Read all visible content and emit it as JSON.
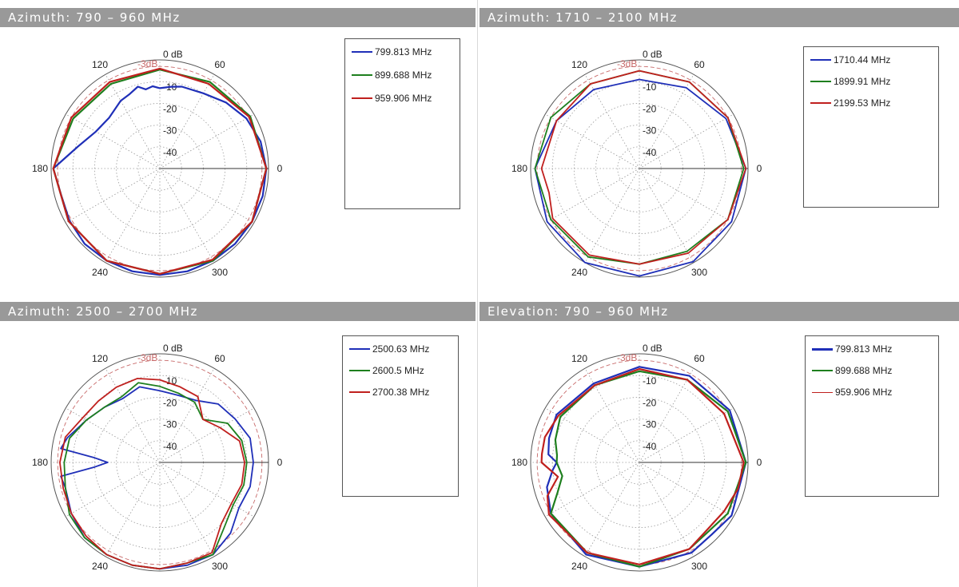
{
  "colors": {
    "title_bar": "#999999",
    "blue": "#1f2fb8",
    "green": "#1e7f1e",
    "red": "#c0201e",
    "grid": "#9a9a9a",
    "ref_3db": "#c86a6a"
  },
  "common": {
    "ring_labels": [
      "0 dB",
      "-10",
      "-20",
      "-30",
      "-40"
    ],
    "ref_label": "-3dB",
    "angle_labels": {
      "a0": "0",
      "a60": "60",
      "a120": "120",
      "a180": "180",
      "a240": "240",
      "a300": "300"
    }
  },
  "panels": [
    {
      "title": "Azimuth: 790 – 960 MHz",
      "chart_data": {
        "type": "polar-line",
        "r_axis": {
          "min": -50,
          "max": 0,
          "ticks": [
            0,
            -10,
            -20,
            -30,
            -40
          ],
          "ref": -3
        },
        "theta_ticks": [
          0,
          60,
          120,
          180,
          240,
          300
        ],
        "series": [
          {
            "name": "799.813 MHz",
            "color": "blue",
            "width": 2.2,
            "theta": [
              0,
              15,
              30,
              45,
              60,
              75,
              82,
              90,
              95,
              100,
              105,
              112,
              120,
              135,
              150,
              165,
              180,
              195,
              210,
              225,
              240,
              255,
              270,
              285,
              300,
              315,
              330,
              345,
              360
            ],
            "r": [
              -1,
              -2,
              -4,
              -7,
              -10,
              -11,
              -12,
              -13,
              -12,
              -13,
              -11,
              -13,
              -14,
              -17,
              -16,
              -11,
              -1,
              -3,
              -2,
              -1,
              -1,
              -1,
              -1,
              -1,
              -1,
              -1,
              -1,
              -1,
              -1
            ]
          },
          {
            "name": "899.688 MHz",
            "color": "green",
            "width": 2.2,
            "theta": [
              0,
              30,
              60,
              90,
              120,
              150,
              180,
              210,
              240,
              270,
              300,
              330,
              360
            ],
            "r": [
              -1,
              -2,
              -4,
              -4.5,
              -5,
              -4,
              -1,
              -1.5,
              -1,
              -1.5,
              -1,
              -1,
              -1
            ]
          },
          {
            "name": "959.906 MHz",
            "color": "red",
            "width": 2.2,
            "theta": [
              0,
              30,
              60,
              90,
              120,
              150,
              180,
              210,
              240,
              270,
              300,
              330,
              360
            ],
            "r": [
              -1,
              -2.5,
              -5,
              -4,
              -4,
              -3,
              -1,
              -1.5,
              -1,
              -1.5,
              -1.5,
              -1,
              -1
            ]
          }
        ]
      }
    },
    {
      "title": "Azimuth: 1710 – 2100 MHz",
      "chart_data": {
        "type": "polar-line",
        "r_axis": {
          "min": -50,
          "max": 0,
          "ticks": [
            0,
            -10,
            -20,
            -30,
            -40
          ],
          "ref": -3
        },
        "theta_ticks": [
          0,
          60,
          120,
          180,
          240,
          300
        ],
        "series": [
          {
            "name": "1710.44 MHz",
            "color": "blue",
            "width": 1.8,
            "theta": [
              0,
              30,
              60,
              90,
              120,
              150,
              180,
              210,
              240,
              270,
              300,
              330,
              360
            ],
            "r": [
              -1,
              -4,
              -7,
              -9,
              -8,
              -6,
              -2,
              -1,
              0,
              -0.5,
              -0.5,
              -1,
              -1
            ]
          },
          {
            "name": "1899.91 MHz",
            "color": "green",
            "width": 1.8,
            "theta": [
              0,
              30,
              60,
              90,
              120,
              150,
              180,
              210,
              240,
              270,
              300,
              330,
              360
            ],
            "r": [
              -2,
              -3,
              -4,
              -5,
              -5,
              -3,
              -2,
              -3,
              -3,
              -6,
              -6,
              -3,
              -2
            ]
          },
          {
            "name": "2199.53 MHz",
            "color": "red",
            "width": 1.8,
            "theta": [
              0,
              30,
              60,
              90,
              120,
              150,
              180,
              195,
              210,
              240,
              270,
              300,
              330,
              360
            ],
            "r": [
              -1,
              -3,
              -4,
              -5,
              -5,
              -6,
              -5,
              -7,
              -4,
              -4,
              -6,
              -5,
              -3,
              -1
            ]
          }
        ]
      }
    },
    {
      "title": "Azimuth: 2500 – 2700 MHz",
      "chart_data": {
        "type": "polar-line",
        "r_axis": {
          "min": -50,
          "max": 0,
          "ticks": [
            0,
            -10,
            -20,
            -30,
            -40
          ],
          "ref": -3
        },
        "theta_ticks": [
          0,
          60,
          120,
          180,
          240,
          300
        ],
        "series": [
          {
            "name": "2500.63 MHz",
            "color": "blue",
            "width": 1.8,
            "theta": [
              0,
              15,
              30,
              45,
              60,
              75,
              90,
              105,
              120,
              135,
              150,
              165,
              172,
              176,
              180,
              184,
              188,
              195,
              210,
              225,
              240,
              255,
              270,
              285,
              300,
              315,
              330,
              345,
              360
            ],
            "r": [
              -7,
              -7,
              -10,
              -12,
              -17,
              -18,
              -17,
              -14,
              -16,
              -14,
              -11,
              -6,
              -4,
              -20,
              -26,
              -20,
              -4,
              -5,
              -3,
              -1,
              -1,
              -1,
              -1,
              -1,
              -1,
              -4,
              -8,
              -7,
              -7
            ]
          },
          {
            "name": "2600.5 MHz",
            "color": "green",
            "width": 1.8,
            "theta": [
              0,
              15,
              30,
              45,
              60,
              75,
              90,
              105,
              120,
              135,
              150,
              165,
              180,
              195,
              210,
              225,
              240,
              255,
              270,
              285,
              300,
              315,
              330,
              345,
              360
            ],
            "r": [
              -10,
              -11,
              -14,
              -22,
              -18,
              -17,
              -15,
              -12,
              -15,
              -14,
              -11,
              -7,
              -6,
              -5,
              -2,
              -1,
              -1,
              -1,
              -1,
              -2,
              -1,
              -8,
              -11,
              -10,
              -10
            ]
          },
          {
            "name": "2700.38 MHz",
            "color": "red",
            "width": 1.8,
            "theta": [
              0,
              15,
              30,
              45,
              60,
              75,
              90,
              105,
              120,
              135,
              150,
              165,
              180,
              195,
              210,
              225,
              240,
              255,
              270,
              285,
              300,
              315,
              330,
              345,
              360
            ],
            "r": [
              -11,
              -12,
              -18,
              -22,
              -15,
              -14,
              -12,
              -10,
              -10,
              -10,
              -9,
              -5,
              -4,
              -4,
              -3,
              -2,
              -1,
              -1,
              -1,
              -2,
              -2,
              -10,
              -12,
              -11,
              -11
            ]
          }
        ]
      }
    },
    {
      "title": "Elevation: 790 – 960 MHz",
      "chart_data": {
        "type": "polar-line",
        "r_axis": {
          "min": -50,
          "max": 0,
          "ticks": [
            0,
            -10,
            -20,
            -30,
            -40
          ],
          "ref": -3
        },
        "theta_ticks": [
          0,
          60,
          120,
          180,
          240,
          300
        ],
        "series": [
          {
            "name": "799.813 MHz",
            "color": "blue",
            "width": 2.2,
            "theta": [
              0,
              30,
              60,
              90,
              120,
              150,
              165,
              175,
              180,
              185,
              195,
              210,
              240,
              270,
              300,
              315,
              330,
              360
            ],
            "r": [
              -1,
              -2,
              -4,
              -6,
              -8,
              -6,
              -7,
              -8,
              -12,
              -10,
              -6,
              -3,
              -1,
              -2,
              -2,
              -3,
              -1,
              -1
            ]
          },
          {
            "name": "899.688 MHz",
            "color": "green",
            "width": 2.2,
            "theta": [
              0,
              30,
              60,
              90,
              120,
              150,
              165,
              175,
              180,
              190,
              200,
              210,
              240,
              270,
              300,
              315,
              330,
              360
            ],
            "r": [
              -1,
              -3,
              -6,
              -8,
              -9,
              -8,
              -10,
              -12,
              -12,
              -14,
              -10,
              -3,
              -2,
              -2,
              -4,
              -5,
              -3,
              -1
            ]
          },
          {
            "name": "959.906 MHz",
            "color": "red",
            "width": 2.2,
            "theta": [
              0,
              30,
              60,
              90,
              120,
              150,
              165,
              175,
              180,
              190,
              200,
              210,
              240,
              270,
              300,
              315,
              330,
              345,
              360
            ],
            "r": [
              -2,
              -5,
              -6,
              -7,
              -9,
              -7,
              -5,
              -5,
              -5,
              -12,
              -5,
              -2,
              -2,
              -3,
              -4,
              -6,
              -5,
              -3,
              -2
            ]
          }
        ]
      }
    }
  ]
}
